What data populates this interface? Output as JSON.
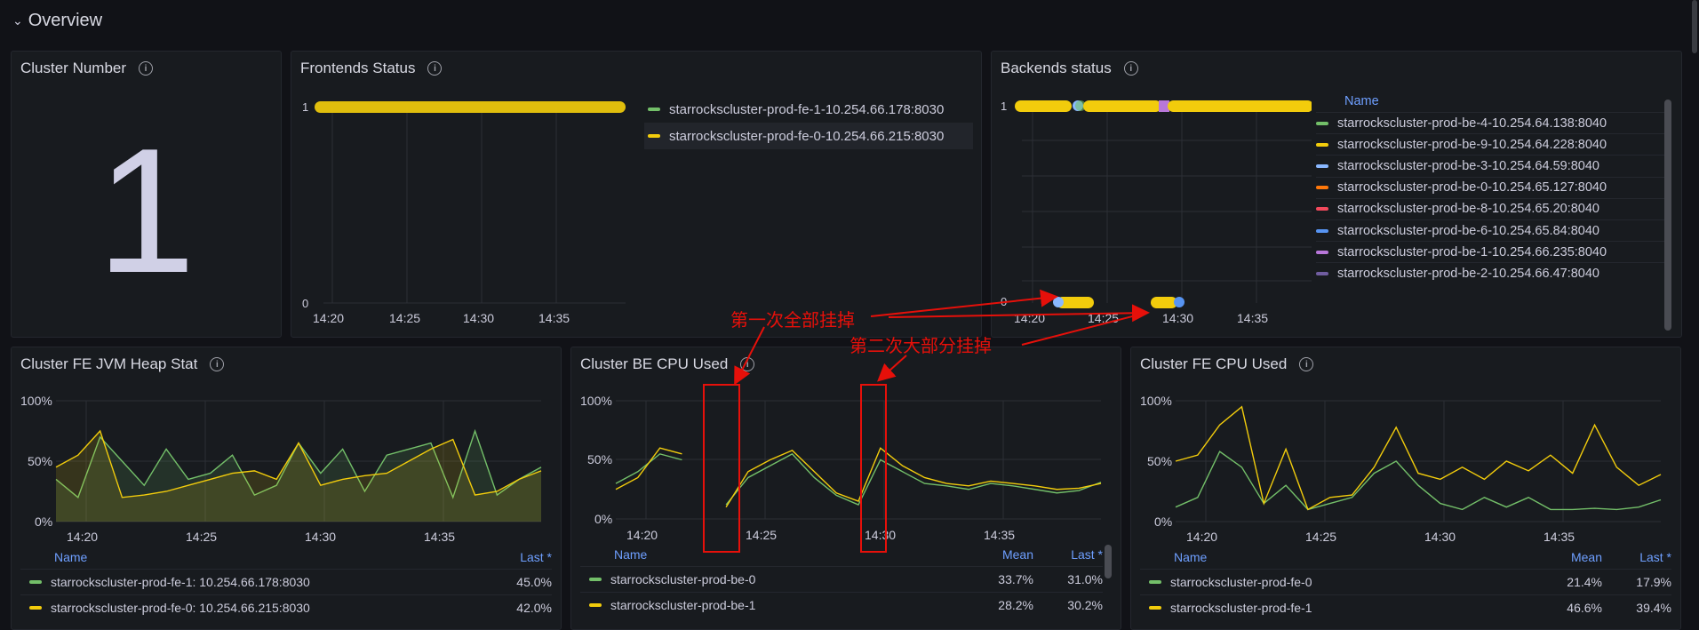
{
  "row": {
    "title": "Overview",
    "chevron": "chevron-down-icon"
  },
  "panels": {
    "cluster_number": {
      "title": "Cluster Number",
      "value": "1"
    },
    "frontends": {
      "title": "Frontends Status",
      "y_ticks": [
        "1",
        "0"
      ],
      "x_ticks": [
        "14:20",
        "14:25",
        "14:30",
        "14:35"
      ],
      "legend": [
        {
          "name": "starrockscluster-prod-fe-1-10.254.66.178:8030",
          "color": "#73bf69"
        },
        {
          "name": "starrockscluster-prod-fe-0-10.254.66.215:8030",
          "color": "#f2cc0c"
        }
      ]
    },
    "backends": {
      "title": "Backends status",
      "y_ticks": [
        "1",
        "0"
      ],
      "x_ticks": [
        "14:20",
        "14:25",
        "14:30",
        "14:35"
      ],
      "legend_header": "Name",
      "legend": [
        {
          "name": "starrockscluster-prod-be-4-10.254.64.138:8040",
          "color": "#73bf69"
        },
        {
          "name": "starrockscluster-prod-be-9-10.254.64.228:8040",
          "color": "#f2cc0c"
        },
        {
          "name": "starrockscluster-prod-be-3-10.254.64.59:8040",
          "color": "#8ab8ff"
        },
        {
          "name": "starrockscluster-prod-be-0-10.254.65.127:8040",
          "color": "#ff780a"
        },
        {
          "name": "starrockscluster-prod-be-8-10.254.65.20:8040",
          "color": "#f2495c"
        },
        {
          "name": "starrockscluster-prod-be-6-10.254.65.84:8040",
          "color": "#5794f2"
        },
        {
          "name": "starrockscluster-prod-be-1-10.254.66.235:8040",
          "color": "#b877d9"
        },
        {
          "name": "starrockscluster-prod-be-2-10.254.66.47:8040",
          "color": "#705da0"
        }
      ]
    },
    "fe_jvm": {
      "title": "Cluster FE JVM Heap Stat",
      "y_ticks": [
        "100%",
        "50%",
        "0%"
      ],
      "x_ticks": [
        "14:20",
        "14:25",
        "14:30",
        "14:35"
      ],
      "legend_headers": {
        "name": "Name",
        "last": "Last *"
      },
      "legend": [
        {
          "name": "starrockscluster-prod-fe-1: 10.254.66.178:8030",
          "last": "45.0%",
          "color": "#73bf69"
        },
        {
          "name": "starrockscluster-prod-fe-0: 10.254.66.215:8030",
          "last": "42.0%",
          "color": "#f2cc0c"
        }
      ]
    },
    "be_cpu": {
      "title": "Cluster BE CPU Used",
      "y_ticks": [
        "100%",
        "50%",
        "0%"
      ],
      "x_ticks": [
        "14:20",
        "14:25",
        "14:30",
        "14:35"
      ],
      "legend_headers": {
        "name": "Name",
        "mean": "Mean",
        "last": "Last *"
      },
      "legend": [
        {
          "name": "starrockscluster-prod-be-0",
          "mean": "33.7%",
          "last": "31.0%",
          "color": "#73bf69"
        },
        {
          "name": "starrockscluster-prod-be-1",
          "mean": "28.2%",
          "last": "30.2%",
          "color": "#f2cc0c"
        }
      ]
    },
    "fe_cpu": {
      "title": "Cluster FE CPU Used",
      "y_ticks": [
        "100%",
        "50%",
        "0%"
      ],
      "x_ticks": [
        "14:20",
        "14:25",
        "14:30",
        "14:35"
      ],
      "legend_headers": {
        "name": "Name",
        "mean": "Mean",
        "last": "Last *"
      },
      "legend": [
        {
          "name": "starrockscluster-prod-fe-0",
          "mean": "21.4%",
          "last": "17.9%",
          "color": "#73bf69"
        },
        {
          "name": "starrockscluster-prod-fe-1",
          "mean": "46.6%",
          "last": "39.4%",
          "color": "#f2cc0c"
        }
      ]
    }
  },
  "annotations": {
    "first": "第一次全部挂掉",
    "second": "第二次大部分挂掉",
    "color": "#e6100a"
  },
  "chart_data": [
    {
      "type": "line",
      "title": "Cluster FE JVM Heap Stat",
      "x": [
        "14:17",
        "14:18",
        "14:19",
        "14:20",
        "14:21",
        "14:22",
        "14:23",
        "14:24",
        "14:25",
        "14:26",
        "14:27",
        "14:28",
        "14:29",
        "14:30",
        "14:31",
        "14:32",
        "14:33",
        "14:34",
        "14:35",
        "14:36",
        "14:37",
        "14:38",
        "14:39"
      ],
      "ylim": [
        0,
        100
      ],
      "series": [
        {
          "name": "starrockscluster-prod-fe-1: 10.254.66.178:8030",
          "values": [
            35,
            20,
            70,
            50,
            30,
            60,
            35,
            40,
            55,
            22,
            30,
            65,
            40,
            60,
            25,
            55,
            60,
            65,
            20,
            75,
            22,
            35,
            45
          ]
        },
        {
          "name": "starrockscluster-prod-fe-0: 10.254.66.215:8030",
          "values": [
            45,
            55,
            75,
            20,
            22,
            25,
            30,
            35,
            40,
            42,
            35,
            65,
            30,
            35,
            38,
            40,
            50,
            60,
            68,
            22,
            25,
            35,
            42
          ]
        }
      ]
    },
    {
      "type": "line",
      "title": "Cluster BE CPU Used",
      "x": [
        "14:17",
        "14:18",
        "14:19",
        "14:20",
        "14:21",
        "14:22",
        "14:23",
        "14:24",
        "14:25",
        "14:26",
        "14:27",
        "14:28",
        "14:29",
        "14:30",
        "14:31",
        "14:32",
        "14:33",
        "14:34",
        "14:35",
        "14:36",
        "14:37",
        "14:38",
        "14:39"
      ],
      "ylim": [
        0,
        100
      ],
      "series": [
        {
          "name": "starrockscluster-prod-be-0",
          "values": [
            30,
            40,
            55,
            50,
            null,
            12,
            35,
            45,
            55,
            35,
            20,
            12,
            50,
            40,
            30,
            28,
            25,
            30,
            28,
            25,
            22,
            24,
            31
          ]
        },
        {
          "name": "starrockscluster-prod-be-1",
          "values": [
            25,
            35,
            60,
            55,
            null,
            10,
            40,
            50,
            58,
            40,
            22,
            15,
            60,
            45,
            35,
            30,
            28,
            32,
            30,
            28,
            25,
            26,
            30
          ]
        }
      ]
    },
    {
      "type": "line",
      "title": "Cluster FE CPU Used",
      "x": [
        "14:17",
        "14:18",
        "14:19",
        "14:20",
        "14:21",
        "14:22",
        "14:23",
        "14:24",
        "14:25",
        "14:26",
        "14:27",
        "14:28",
        "14:29",
        "14:30",
        "14:31",
        "14:32",
        "14:33",
        "14:34",
        "14:35",
        "14:36",
        "14:37",
        "14:38",
        "14:39"
      ],
      "ylim": [
        0,
        100
      ],
      "series": [
        {
          "name": "starrockscluster-prod-fe-0",
          "values": [
            12,
            20,
            58,
            45,
            15,
            30,
            10,
            15,
            20,
            40,
            50,
            30,
            15,
            10,
            20,
            12,
            20,
            10,
            10,
            11,
            10,
            12,
            18
          ]
        },
        {
          "name": "starrockscluster-prod-fe-1",
          "values": [
            50,
            55,
            80,
            95,
            15,
            60,
            10,
            20,
            22,
            45,
            78,
            40,
            35,
            45,
            35,
            50,
            42,
            55,
            40,
            80,
            45,
            30,
            39
          ]
        }
      ]
    }
  ]
}
